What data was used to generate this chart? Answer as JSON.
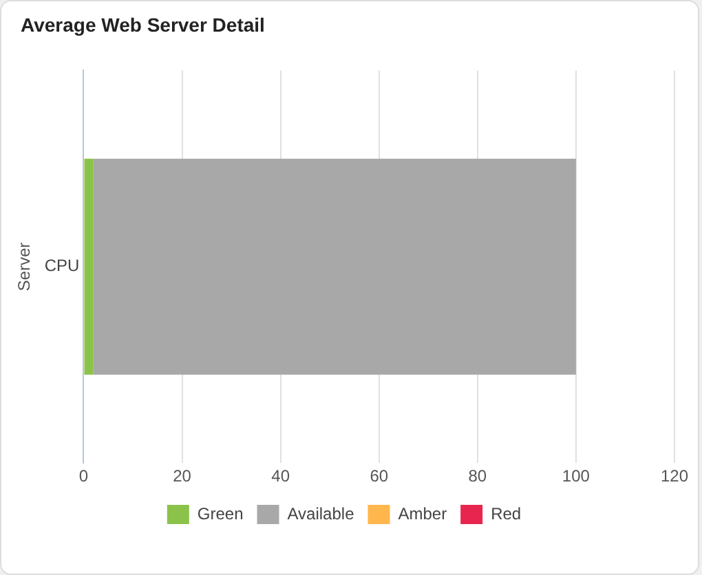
{
  "chart_data": {
    "type": "bar",
    "title": "Average Web Server Detail",
    "ylabel": "Server",
    "orientation": "horizontal",
    "stacked": true,
    "categories": [
      "CPU"
    ],
    "series": [
      {
        "name": "Green",
        "color": "#8bc34a",
        "values": [
          2
        ]
      },
      {
        "name": "Available",
        "color": "#a8a8a8",
        "values": [
          98
        ]
      },
      {
        "name": "Amber",
        "color": "#ffb74d",
        "values": [
          0
        ]
      },
      {
        "name": "Red",
        "color": "#e8254f",
        "values": [
          0
        ]
      }
    ],
    "xlim": [
      0,
      120
    ],
    "xticks": [
      0,
      20,
      40,
      60,
      80,
      100,
      120
    ],
    "grid": "x",
    "legend": "bottom"
  }
}
